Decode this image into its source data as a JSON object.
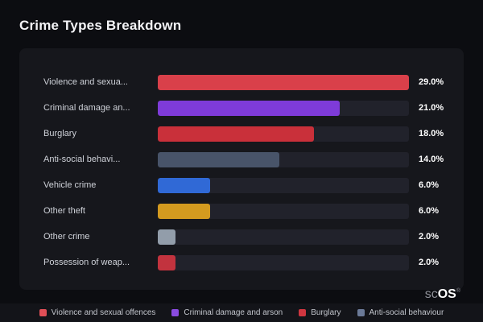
{
  "page": {
    "title": "Crime Types Breakdown"
  },
  "logo": {
    "prefix": "sc",
    "suffix": "OS",
    "reg": "®"
  },
  "chart_data": {
    "type": "bar",
    "orientation": "horizontal",
    "title": "Crime Types Breakdown",
    "xlabel": "",
    "ylabel": "",
    "xlim": [
      0,
      29
    ],
    "grid": false,
    "categories": [
      "Violence and sexua...",
      "Criminal damage an...",
      "Burglary",
      "Anti-social behavi...",
      "Vehicle crime",
      "Other theft",
      "Other crime",
      "Possession of weap..."
    ],
    "values": [
      29.0,
      21.0,
      18.0,
      14.0,
      6.0,
      6.0,
      2.0,
      2.0
    ],
    "value_labels": [
      "29.0%",
      "21.0%",
      "18.0%",
      "14.0%",
      "6.0%",
      "6.0%",
      "2.0%",
      "2.0%"
    ],
    "bar_colors": [
      "#d9404a",
      "#7e3bd9",
      "#c9303a",
      "#485469",
      "#3069d6",
      "#d39a1f",
      "#929daa",
      "#c2333e"
    ],
    "max": 29,
    "track_color": "#21222b",
    "legend_position": "bottom"
  },
  "legend": {
    "items": [
      {
        "label": "Violence and sexual offences",
        "color": "#e04f57"
      },
      {
        "label": "Criminal damage and arson",
        "color": "#8a4be0"
      },
      {
        "label": "Burglary",
        "color": "#cf3640"
      },
      {
        "label": "Anti-social behaviour",
        "color": "#6b7避8"
      }
    ]
  }
}
